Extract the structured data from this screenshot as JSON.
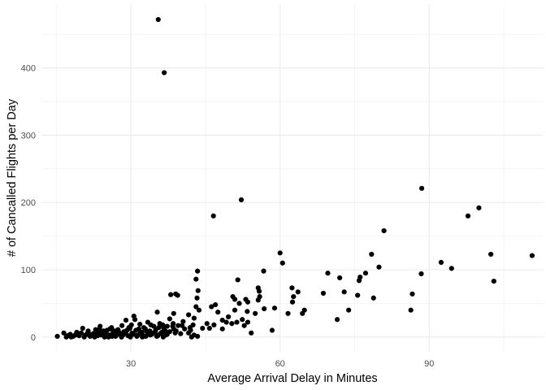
{
  "chart_data": {
    "type": "scatter",
    "title": "",
    "xlabel": "Average Arrival Delay in Minutes",
    "ylabel": "# of Cancalled Flights per Day",
    "xlim": [
      12,
      113
    ],
    "ylim": [
      -22,
      495
    ],
    "x_ticks": [
      30,
      60,
      90
    ],
    "x_minor_ticks": [
      15,
      45,
      75,
      105
    ],
    "y_ticks": [
      0,
      100,
      200,
      300,
      400
    ],
    "y_minor_ticks": [
      50,
      150,
      250,
      350,
      450
    ],
    "grid": true,
    "legend": "none",
    "point_color": "#000000",
    "points": [
      [
        35.5,
        472
      ],
      [
        36.7,
        393
      ],
      [
        52.2,
        204
      ],
      [
        46.6,
        180
      ],
      [
        88.5,
        221
      ],
      [
        97.8,
        180
      ],
      [
        100,
        192
      ],
      [
        80.9,
        158
      ],
      [
        60,
        125
      ],
      [
        60.5,
        110
      ],
      [
        78.4,
        123
      ],
      [
        102.4,
        123
      ],
      [
        110.7,
        121
      ],
      [
        92.4,
        111
      ],
      [
        94.5,
        102
      ],
      [
        103,
        83
      ],
      [
        88.4,
        94
      ],
      [
        79.9,
        104
      ],
      [
        76.1,
        89
      ],
      [
        72,
        88
      ],
      [
        69.6,
        95
      ],
      [
        56.7,
        98
      ],
      [
        43.4,
        98
      ],
      [
        43.1,
        86
      ],
      [
        51.5,
        85
      ],
      [
        38,
        63
      ],
      [
        39,
        64
      ],
      [
        39.4,
        62
      ],
      [
        43.5,
        69
      ],
      [
        55.6,
        73
      ],
      [
        55.8,
        68
      ],
      [
        62.4,
        73
      ],
      [
        63.6,
        67
      ],
      [
        62.7,
        60
      ],
      [
        68.7,
        65
      ],
      [
        72.9,
        67
      ],
      [
        75.6,
        62
      ],
      [
        77.2,
        95
      ],
      [
        75.9,
        84
      ],
      [
        78.8,
        58
      ],
      [
        86.6,
        64
      ],
      [
        86.3,
        40
      ],
      [
        71.5,
        26
      ],
      [
        73.8,
        40
      ],
      [
        64.9,
        40
      ],
      [
        64.5,
        35
      ],
      [
        62.5,
        52
      ],
      [
        61.6,
        35
      ],
      [
        58.9,
        43
      ],
      [
        58.4,
        10
      ],
      [
        54.2,
        6
      ],
      [
        50.5,
        60
      ],
      [
        50.9,
        56
      ],
      [
        51.8,
        50
      ],
      [
        53.1,
        56
      ],
      [
        53.5,
        52
      ],
      [
        55.9,
        60
      ],
      [
        55.6,
        55
      ],
      [
        56.8,
        42
      ],
      [
        55,
        35
      ],
      [
        53.4,
        38
      ],
      [
        52.4,
        26
      ],
      [
        51.3,
        22
      ],
      [
        52.8,
        17
      ],
      [
        53.5,
        22
      ],
      [
        50.9,
        40
      ],
      [
        49.6,
        30
      ],
      [
        48.4,
        25
      ],
      [
        47.5,
        37
      ],
      [
        47,
        48
      ],
      [
        46.2,
        45
      ],
      [
        45.3,
        20
      ],
      [
        44.4,
        13
      ],
      [
        45.8,
        13
      ],
      [
        46.7,
        18
      ],
      [
        48.4,
        12
      ],
      [
        49.2,
        22
      ],
      [
        50.3,
        20
      ],
      [
        43.3,
        58
      ],
      [
        43.1,
        45
      ],
      [
        43.7,
        40
      ],
      [
        42.7,
        28
      ],
      [
        41.6,
        33
      ],
      [
        40.5,
        23
      ],
      [
        39.5,
        17
      ],
      [
        38.4,
        16
      ],
      [
        37.8,
        27
      ],
      [
        38.6,
        35
      ],
      [
        35.3,
        37
      ],
      [
        36.4,
        18
      ],
      [
        37.3,
        16
      ],
      [
        38.6,
        12
      ],
      [
        39.1,
        9
      ],
      [
        40.8,
        12
      ],
      [
        41.9,
        14
      ],
      [
        42.5,
        18
      ],
      [
        42,
        10
      ],
      [
        40,
        5
      ],
      [
        41.6,
        6
      ],
      [
        42.7,
        3
      ],
      [
        43.4,
        1
      ],
      [
        42.2,
        0
      ],
      [
        38.5,
        20
      ],
      [
        40.3,
        17
      ],
      [
        15.2,
        1
      ],
      [
        16.5,
        6
      ],
      [
        17.3,
        2
      ],
      [
        17.8,
        4
      ],
      [
        18.4,
        1
      ],
      [
        19.1,
        7
      ],
      [
        19.6,
        2
      ],
      [
        20.3,
        13
      ],
      [
        20.9,
        3
      ],
      [
        21.4,
        9
      ],
      [
        21.8,
        1
      ],
      [
        22.4,
        5
      ],
      [
        22.9,
        11
      ],
      [
        23.3,
        2
      ],
      [
        23.8,
        16
      ],
      [
        24.3,
        6
      ],
      [
        24.7,
        0
      ],
      [
        25.2,
        10
      ],
      [
        25.6,
        3
      ],
      [
        26.1,
        14
      ],
      [
        26.5,
        7
      ],
      [
        26.9,
        1
      ],
      [
        27.4,
        11
      ],
      [
        27.8,
        4
      ],
      [
        28.2,
        17
      ],
      [
        28.6,
        8
      ],
      [
        29,
        25
      ],
      [
        29.4,
        2
      ],
      [
        29.8,
        13
      ],
      [
        30.2,
        6
      ],
      [
        30.6,
        31
      ],
      [
        31,
        10
      ],
      [
        31.4,
        3
      ],
      [
        31.8,
        19
      ],
      [
        32.2,
        7
      ],
      [
        32.6,
        14
      ],
      [
        33,
        1
      ],
      [
        33.4,
        22
      ],
      [
        33.8,
        9
      ],
      [
        34.2,
        4
      ],
      [
        34.6,
        16
      ],
      [
        35,
        11
      ],
      [
        35.4,
        2
      ],
      [
        35.8,
        20
      ],
      [
        36.2,
        7
      ],
      [
        36.6,
        13
      ],
      [
        37,
        3
      ],
      [
        18,
        0
      ],
      [
        19.3,
        3
      ],
      [
        20.6,
        0
      ],
      [
        21.2,
        5
      ],
      [
        22,
        2
      ],
      [
        22.7,
        0
      ],
      [
        23.5,
        7
      ],
      [
        24,
        3
      ],
      [
        24.9,
        4
      ],
      [
        25.5,
        0
      ],
      [
        26.3,
        5
      ],
      [
        27,
        2
      ],
      [
        27.6,
        7
      ],
      [
        28.4,
        3
      ],
      [
        29.2,
        10
      ],
      [
        29.9,
        0
      ],
      [
        30.5,
        4
      ],
      [
        31.2,
        1
      ],
      [
        31.9,
        6
      ],
      [
        32.5,
        2
      ],
      [
        33.2,
        8
      ],
      [
        33.9,
        3
      ],
      [
        34.5,
        6
      ],
      [
        35.2,
        1
      ],
      [
        35.9,
        5
      ],
      [
        36.5,
        0
      ],
      [
        37.3,
        4
      ],
      [
        28.9,
        6
      ],
      [
        30.1,
        18
      ],
      [
        30.8,
        26
      ],
      [
        32.9,
        12
      ],
      [
        34,
        18
      ],
      [
        34.9,
        8
      ],
      [
        26.7,
        9
      ],
      [
        25.8,
        12
      ],
      [
        24.5,
        9
      ],
      [
        23,
        6
      ],
      [
        21.6,
        4
      ],
      [
        20,
        6
      ],
      [
        18.8,
        3
      ],
      [
        17,
        0
      ],
      [
        27.2,
        4
      ],
      [
        29.6,
        14
      ],
      [
        31.6,
        12
      ],
      [
        33.6,
        5
      ],
      [
        35.6,
        14
      ],
      [
        36.9,
        9
      ],
      [
        37.8,
        8
      ],
      [
        38.9,
        6
      ],
      [
        23.7,
        12
      ],
      [
        26.2,
        1
      ],
      [
        28.1,
        0
      ],
      [
        32.3,
        0
      ]
    ]
  }
}
